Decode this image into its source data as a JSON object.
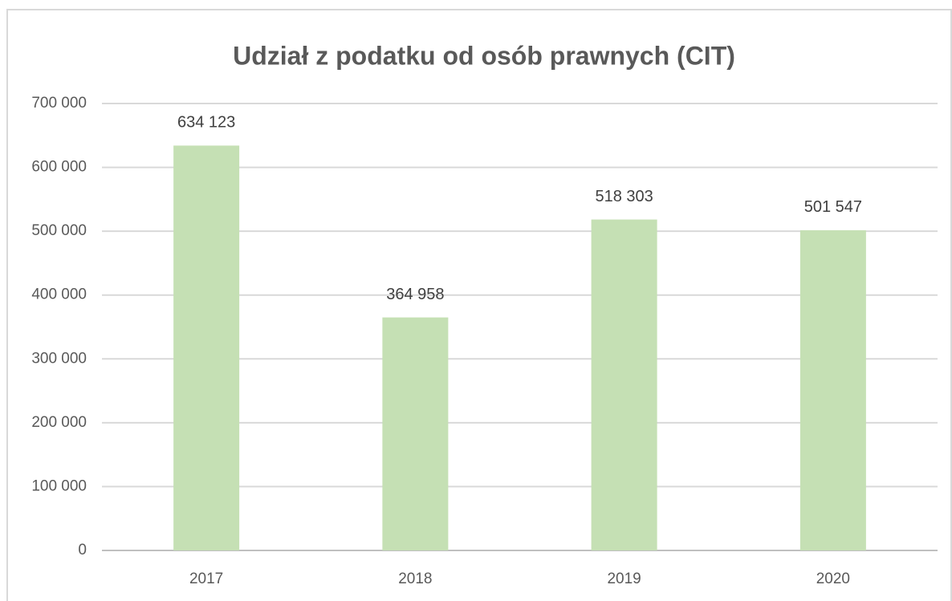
{
  "chart_data": {
    "type": "bar",
    "title": "Udział z podatku od osób prawnych (CIT)",
    "categories": [
      "2017",
      "2018",
      "2019",
      "2020"
    ],
    "values": [
      634123,
      364958,
      518303,
      501547
    ],
    "value_labels": [
      "634 123",
      "364 958",
      "518 303",
      "501 547"
    ],
    "color": "#c5e0b4",
    "ylim": [
      0,
      700000
    ],
    "yticks": [
      0,
      {
        "value": 100000,
        "label": "100 000"
      },
      {
        "value": 200000,
        "label": "200 000"
      },
      {
        "value": 300000,
        "label": "300 000"
      },
      {
        "value": 400000,
        "label": "400 000"
      },
      {
        "value": 500000,
        "label": "500 000"
      },
      {
        "value": 600000,
        "label": "600 000"
      },
      {
        "value": 700000,
        "label": "700 000"
      }
    ],
    "grid": true
  }
}
